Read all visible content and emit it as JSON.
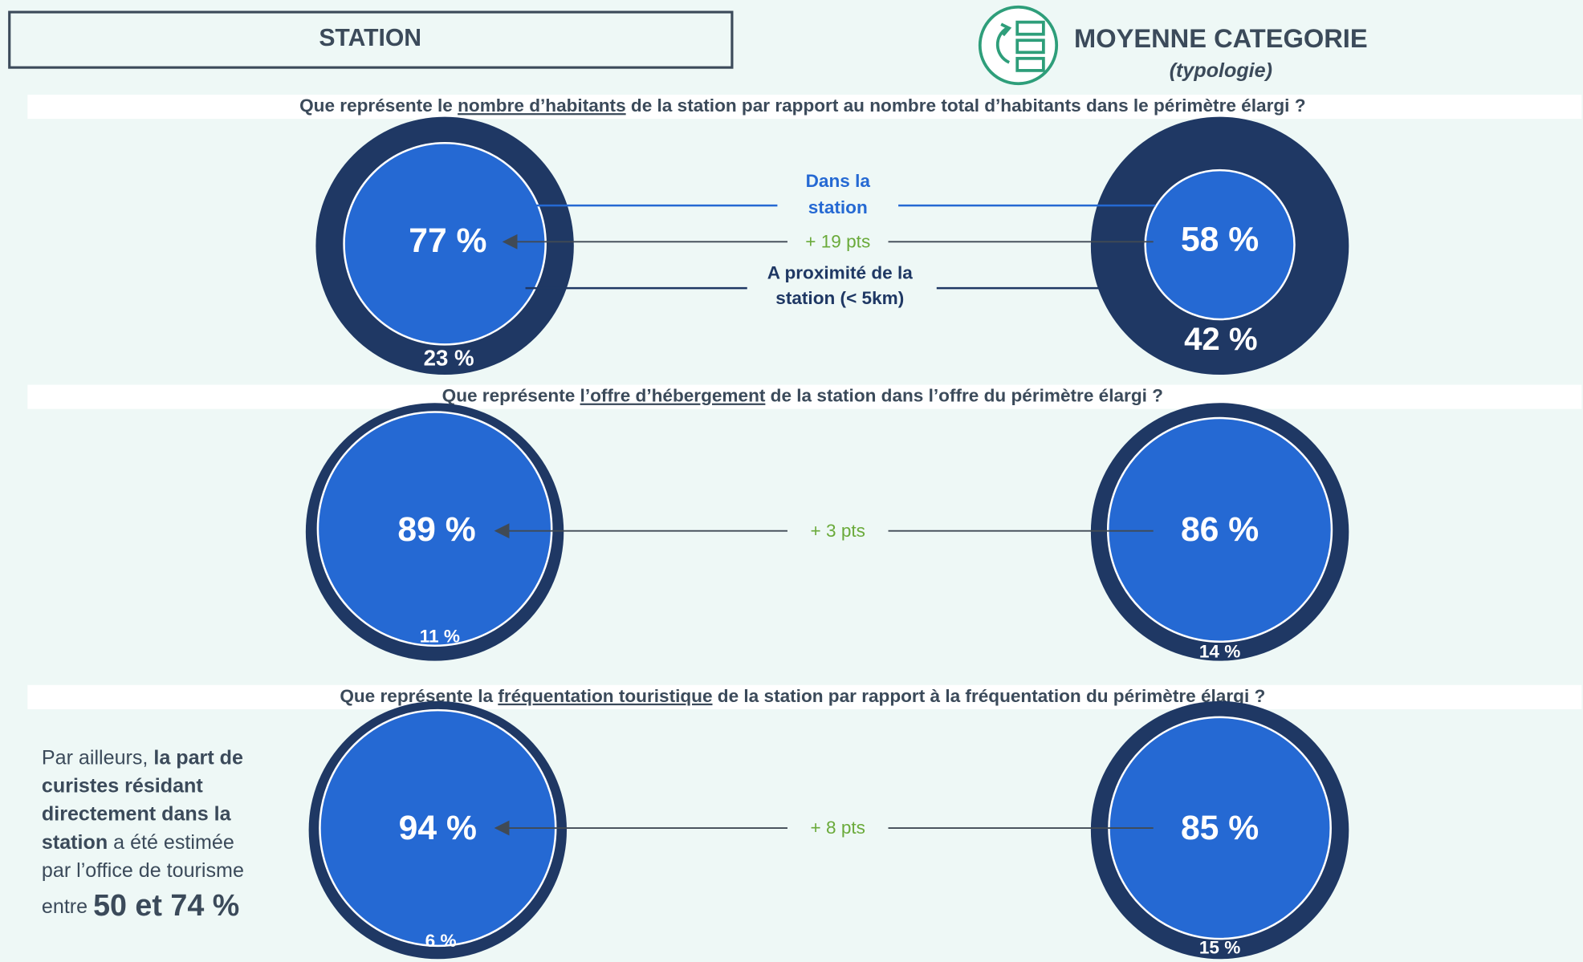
{
  "header": {
    "station": "STATION",
    "category": "MOYENNE CATEGORIE",
    "category_sub": "(typologie)"
  },
  "rows": [
    {
      "question": {
        "before": "Que représente le ",
        "underlined": "nombre d’habitants",
        "after": " de la station par rapport au nombre total d’habitants dans le périmètre élargi ?"
      },
      "station_inner": "77 %",
      "station_outer": "23 %",
      "category_inner": "58 %",
      "category_outer": "42 %",
      "difference": "+ 19 pts",
      "legend_inner": [
        "Dans la",
        "station"
      ],
      "legend_outer": [
        "A proximité de la",
        "station (< 5km)"
      ]
    },
    {
      "question": {
        "before": "Que représente ",
        "underlined": "l’offre d’hébergement",
        "after": " de la station dans l’offre du périmètre élargi ?"
      },
      "station_inner": "89 %",
      "station_outer": "11 %",
      "category_inner": "86 %",
      "category_outer": "14 %",
      "difference": "+ 3 pts"
    },
    {
      "question": {
        "before": "Que représente la ",
        "underlined": "fréquentation touristique",
        "after": " de la station par rapport à la fréquentation du périmètre élargi ?"
      },
      "station_inner": "94 %",
      "station_outer": "6 %",
      "category_inner": "85 %",
      "category_outer": "15 %",
      "difference": "+ 8 pts"
    }
  ],
  "side_note": {
    "lines": [
      [
        {
          "text": "Par ailleurs, ",
          "bold": false
        },
        {
          "text": "la part de",
          "bold": true
        }
      ],
      [
        {
          "text": "curistes résidant",
          "bold": true
        }
      ],
      [
        {
          "text": "directement dans la",
          "bold": true
        }
      ],
      [
        {
          "text": "station",
          "bold": true
        },
        {
          "text": " a été estimée",
          "bold": false
        }
      ],
      [
        {
          "text": "par l’office de tourisme",
          "bold": false
        }
      ],
      [
        {
          "text": "entre ",
          "bold": false
        },
        {
          "text": "50 et 74 %",
          "bold": true,
          "large": true
        }
      ]
    ]
  }
}
